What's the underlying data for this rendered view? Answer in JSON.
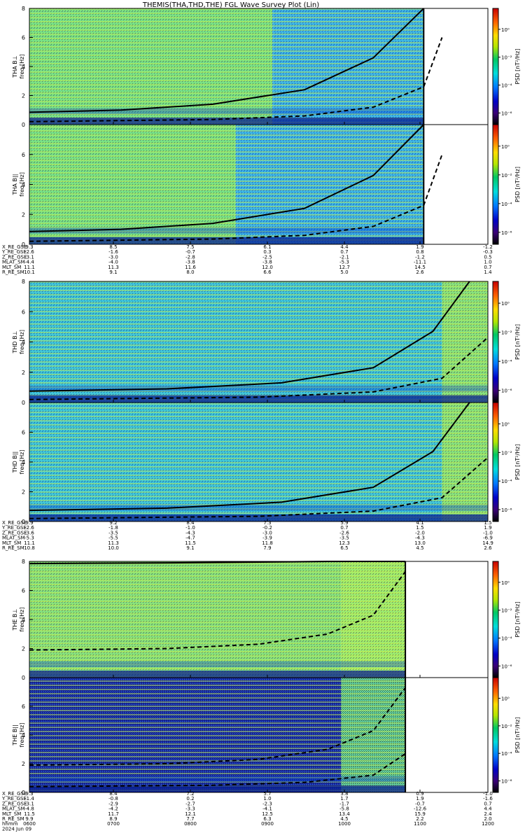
{
  "title": "THEMIS(THA,THD,THE) FGL Wave Survey Plot (Lin)",
  "chart_data": {
    "type": "heatmap",
    "xlim_hhmm": [
      "0600",
      "1200"
    ],
    "date_label": "2024 Jun 09",
    "time_row_label": "hhmm",
    "colorbar": {
      "label": "PSD [nT²/Hz]",
      "scale": "log",
      "tick_labels": [
        "10⁰",
        "10⁻²",
        "10⁻⁴",
        "10⁻⁶"
      ],
      "colors": [
        "#000000",
        "#3a0078",
        "#0000c8",
        "#0078ff",
        "#00dcdc",
        "#00c864",
        "#b4e600",
        "#ffdc00",
        "#ff6400",
        "#c80000"
      ]
    },
    "panels": [
      {
        "key": "tha_bl",
        "ylabel": [
          "THA B⊥",
          "freq [Hz]"
        ],
        "ylim": [
          0,
          8
        ],
        "yticks": [
          "0",
          "2",
          "4",
          "6",
          "8"
        ],
        "data_end_frac": 0.86,
        "regime_change_frac": 0.53,
        "bright_start_frac": 0.0,
        "style": "tha",
        "curves": [
          {
            "x": [
              0,
              0.2,
              0.4,
              0.6,
              0.75,
              0.86
            ],
            "y": [
              0.85,
              1.0,
              1.4,
              2.4,
              4.6,
              8.0
            ],
            "dash": false
          },
          {
            "x": [
              0,
              0.4,
              0.6,
              0.75,
              0.86,
              0.9
            ],
            "y": [
              0.2,
              0.35,
              0.6,
              1.2,
              2.6,
              6.0
            ],
            "dash": true
          }
        ]
      },
      {
        "key": "tha_bpar",
        "ylabel": [
          "THA B||",
          "freq [Hz]"
        ],
        "ylim": [
          0,
          8
        ],
        "yticks": [
          "0",
          "2",
          "4",
          "6"
        ],
        "data_end_frac": 0.86,
        "regime_change_frac": 0.45,
        "bright_start_frac": 0.0,
        "style": "tha",
        "curves": [
          {
            "x": [
              0,
              0.2,
              0.4,
              0.6,
              0.75,
              0.86
            ],
            "y": [
              0.85,
              1.0,
              1.4,
              2.4,
              4.6,
              8.0
            ],
            "dash": false
          },
          {
            "x": [
              0,
              0.4,
              0.6,
              0.75,
              0.86,
              0.9
            ],
            "y": [
              0.2,
              0.35,
              0.6,
              1.2,
              2.6,
              6.0
            ],
            "dash": true
          }
        ]
      },
      {
        "key": "thd_bl",
        "ylabel": [
          "THD B⊥",
          "freq [Hz]"
        ],
        "ylim": [
          0,
          8
        ],
        "yticks": [
          "0",
          "2",
          "4",
          "6",
          "8"
        ],
        "data_end_frac": 1.0,
        "regime_change_frac": 0.9,
        "bright_start_frac": 0.9,
        "style": "thd",
        "curves": [
          {
            "x": [
              0,
              0.3,
              0.55,
              0.75,
              0.88,
              0.96
            ],
            "y": [
              0.75,
              0.9,
              1.3,
              2.3,
              4.7,
              8.0
            ],
            "dash": false
          },
          {
            "x": [
              0,
              0.5,
              0.75,
              0.9,
              1.0
            ],
            "y": [
              0.2,
              0.35,
              0.7,
              1.6,
              4.3
            ],
            "dash": true
          }
        ]
      },
      {
        "key": "thd_bpar",
        "ylabel": [
          "THD B||",
          "freq [Hz]"
        ],
        "ylim": [
          0,
          8
        ],
        "yticks": [
          "0",
          "2",
          "4",
          "6"
        ],
        "data_end_frac": 1.0,
        "regime_change_frac": 0.9,
        "bright_start_frac": 0.9,
        "style": "thd",
        "curves": [
          {
            "x": [
              0,
              0.3,
              0.55,
              0.75,
              0.88,
              0.96
            ],
            "y": [
              0.75,
              0.9,
              1.3,
              2.3,
              4.7,
              8.0
            ],
            "dash": false
          },
          {
            "x": [
              0,
              0.5,
              0.75,
              0.9,
              1.0
            ],
            "y": [
              0.2,
              0.35,
              0.7,
              1.6,
              4.3
            ],
            "dash": true
          }
        ]
      },
      {
        "key": "the_bl",
        "ylabel": [
          "THE B⊥",
          "freq [Hz]"
        ],
        "ylim": [
          0,
          8
        ],
        "yticks": [
          "0",
          "2",
          "4",
          "6",
          "8"
        ],
        "data_end_frac": 0.82,
        "regime_change_frac": 0.68,
        "bright_start_frac": 0.0,
        "style": "the",
        "curves": [
          {
            "x": [
              0,
              0.3,
              0.5,
              0.65,
              0.75,
              0.82
            ],
            "y": [
              7.85,
              7.9,
              7.95,
              8.0,
              8.0,
              8.0
            ],
            "dash": false
          },
          {
            "x": [
              0,
              0.3,
              0.5,
              0.65,
              0.75,
              0.82
            ],
            "y": [
              1.9,
              2.0,
              2.3,
              3.0,
              4.3,
              7.3
            ],
            "dash": true
          }
        ]
      },
      {
        "key": "the_bpar",
        "ylabel": [
          "THE B||",
          "freq [Hz]"
        ],
        "ylim": [
          0,
          8
        ],
        "yticks": [
          "0",
          "2",
          "4",
          "6"
        ],
        "data_end_frac": 0.82,
        "regime_change_frac": 0.68,
        "bright_start_frac": 0.0,
        "style": "the_par",
        "curves": [
          {
            "x": [
              0,
              0.3,
              0.5,
              0.65,
              0.75,
              0.82
            ],
            "y": [
              1.9,
              2.0,
              2.3,
              3.0,
              4.3,
              7.3
            ],
            "dash": true
          },
          {
            "x": [
              0,
              0.4,
              0.6,
              0.75,
              0.82
            ],
            "y": [
              0.4,
              0.5,
              0.7,
              1.2,
              2.7
            ],
            "dash": true
          }
        ]
      }
    ]
  },
  "ephemeris": [
    {
      "group": "tha",
      "labels": [
        "X_RE_GSE",
        "Y_RE_GSE",
        "Z_RE_GSE",
        "MLAT_SM",
        "MLT_SM",
        "R_RE_SM"
      ],
      "columns": [
        [
          "9.3",
          "-2.6",
          "-3.1",
          "-4.4",
          "11.1",
          "10.1"
        ],
        [
          "8.5",
          "-1.6",
          "-3.0",
          "-4.0",
          "11.3",
          "9.1"
        ],
        [
          "7.5",
          "-0.7",
          "-2.8",
          "-3.8",
          "11.6",
          "8.0"
        ],
        [
          "6.1",
          "0.3",
          "-2.5",
          "-3.8",
          "12.0",
          "6.6"
        ],
        [
          "4.4",
          "0.7",
          "-2.1",
          "-5.3",
          "12.7",
          "5.0"
        ],
        [
          "1.9",
          "0.8",
          "-1.2",
          "-11.1",
          "14.5",
          "2.6"
        ],
        [
          "-1.2",
          "-0.3",
          "0.5",
          "1.0",
          "0.7",
          "1.4"
        ]
      ]
    },
    {
      "group": "thd",
      "labels": [
        "X_RE_GSE",
        "Y_RE_GSE",
        "Z_RE_GSE",
        "MLAT_SM",
        "MLT_SM",
        "R_RE_SM"
      ],
      "columns": [
        [
          "9.9",
          "-2.6",
          "-3.6",
          "-5.3",
          "11.1",
          "10.8"
        ],
        [
          "9.2",
          "-1.8",
          "-3.5",
          "-5.5",
          "11.3",
          "10.0"
        ],
        [
          "8.4",
          "-1.0",
          "-4.3",
          "-4.7",
          "11.5",
          "9.1"
        ],
        [
          "7.3",
          "-0.2",
          "-3.0",
          "-3.9",
          "11.8",
          "7.9"
        ],
        [
          "5.9",
          "0.7",
          "-2.6",
          "-3.5",
          "12.3",
          "6.5"
        ],
        [
          "4.1",
          "1.5",
          "-2.0",
          "-4.3",
          "13.0",
          "4.5"
        ],
        [
          "1.5",
          "1.9",
          "-1.0",
          "-6.9",
          "14.9",
          "2.6"
        ]
      ]
    },
    {
      "group": "the",
      "labels": [
        "X_RE_GSE",
        "Y_RE_GSE",
        "Z_RE_GSE",
        "MLAT_SM",
        "MLT_SM",
        "R_RE_SM",
        "hhmm",
        "2024 Jun 09"
      ],
      "columns": [
        [
          "9.3",
          "-1.4",
          "-3.1",
          "-4.8",
          "11.5",
          "9.9",
          "0600",
          ""
        ],
        [
          "8.4",
          "-0.8",
          "-2.9",
          "-4.2",
          "11.7",
          "8.9",
          "0700",
          ""
        ],
        [
          "7.2",
          "0.2",
          "-2.7",
          "-3.3",
          "12.1",
          "7.7",
          "0800",
          ""
        ],
        [
          "5.7",
          "1.0",
          "-2.3",
          "-4.1",
          "12.5",
          "6.3",
          "0900",
          ""
        ],
        [
          "3.8",
          "1.7",
          "-1.7",
          "-5.8",
          "13.4",
          "4.5",
          "1000",
          ""
        ],
        [
          "0.9",
          "1.9",
          "-0.7",
          "-12.6",
          "15.9",
          "2.2",
          "1100",
          ""
        ],
        [
          "-1.0",
          "-1.6",
          "0.7",
          "4.4",
          "2.4",
          "2.0",
          "1200",
          ""
        ]
      ]
    }
  ]
}
